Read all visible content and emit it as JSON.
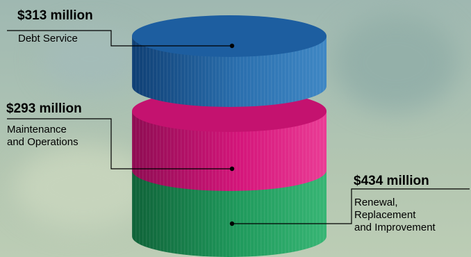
{
  "chart_data": {
    "type": "stacked-cylinder",
    "title": "",
    "segments": [
      {
        "amount_label": "$313 million",
        "description": [
          "Debt Service"
        ],
        "value": 313,
        "unit": "million",
        "color": "#1c5a9c"
      },
      {
        "amount_label": "$293 million",
        "description": [
          "Maintenance",
          "and Operations"
        ],
        "value": 293,
        "unit": "million",
        "color": "#d4157a"
      },
      {
        "amount_label": "$434 million",
        "description": [
          "Renewal,",
          "Replacement",
          "and Improvement"
        ],
        "value": 434,
        "unit": "million",
        "color": "#1f9a5c"
      }
    ]
  }
}
